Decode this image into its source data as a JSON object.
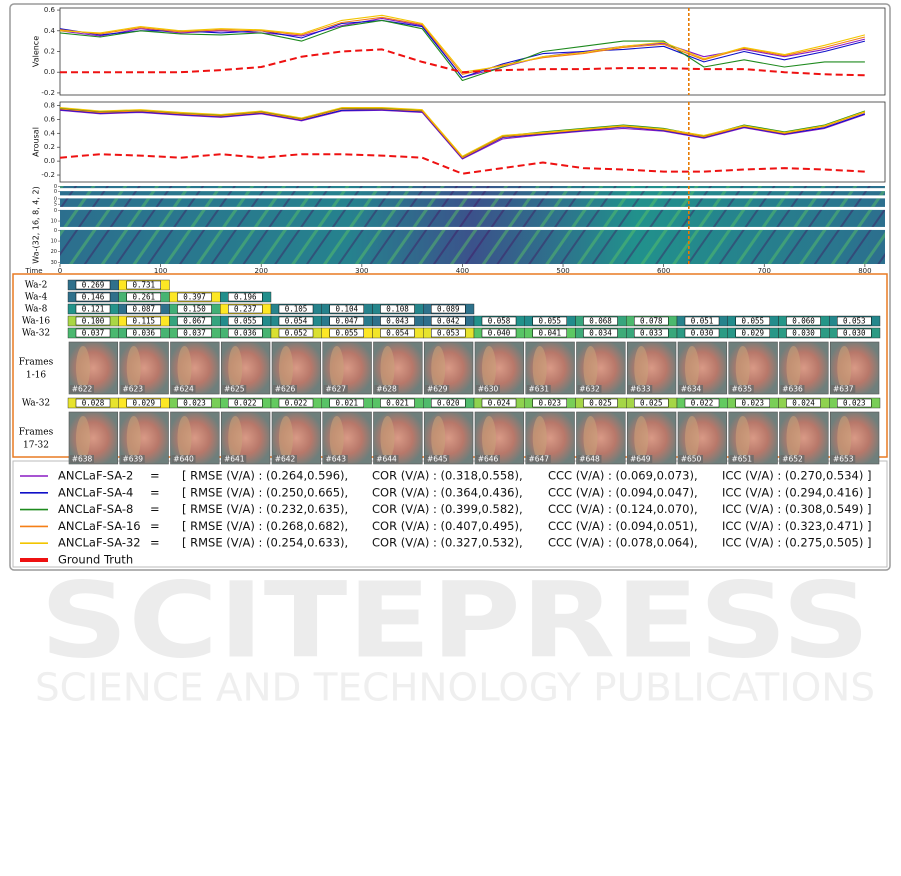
{
  "chart_data": [
    {
      "type": "line",
      "ylabel": "Valence",
      "x": [
        0,
        40,
        80,
        120,
        160,
        200,
        240,
        280,
        320,
        360,
        400,
        440,
        480,
        520,
        560,
        600,
        640,
        680,
        720,
        760,
        800
      ],
      "xlim": [
        0,
        820
      ],
      "ylim": [
        -0.22,
        0.62
      ],
      "yticks": [
        -0.2,
        {
          "value": 0,
          "label": "0.0"
        },
        0.2,
        0.4,
        0.6
      ],
      "highlight_x": 625,
      "highlight_color": "#e87a00",
      "series": [
        {
          "name": "ANCLaF-SA-2",
          "color": "#8a1cc4",
          "equals": "=",
          "metrics": [
            "[ RMSE (V/A) : (0.264,0.596),",
            "COR (V/A) : (0.318,0.558),",
            "CCC (V/A) : (0.069,0.073),",
            "ICC (V/A) : (0.270,0.534) ]"
          ],
          "values": [
            0.4,
            0.35,
            0.42,
            0.38,
            0.4,
            0.38,
            0.35,
            0.45,
            0.52,
            0.45,
            -0.05,
            0.05,
            0.15,
            0.2,
            0.25,
            0.28,
            0.15,
            0.22,
            0.15,
            0.22,
            0.32
          ]
        },
        {
          "name": "ANCLaF-SA-4",
          "color": "#1010c8",
          "equals": "=",
          "metrics": [
            "[ RMSE (V/A) : (0.250,0.665),",
            "COR (V/A) : (0.364,0.436),",
            "CCC (V/A) : (0.094,0.047),",
            "ICC (V/A) : (0.294,0.416) ]"
          ],
          "values": [
            0.42,
            0.36,
            0.4,
            0.4,
            0.38,
            0.4,
            0.33,
            0.47,
            0.5,
            0.44,
            -0.05,
            0.08,
            0.18,
            0.2,
            0.22,
            0.25,
            0.1,
            0.2,
            0.12,
            0.2,
            0.3
          ]
        },
        {
          "name": "ANCLaF-SA-8",
          "color": "#1e8a1e",
          "equals": "=",
          "metrics": [
            "[ RMSE (V/A) : (0.232,0.635),",
            "COR (V/A) : (0.399,0.582),",
            "CCC (V/A) : (0.124,0.070),",
            "ICC (V/A) : (0.308,0.549) ]"
          ],
          "values": [
            0.38,
            0.34,
            0.4,
            0.37,
            0.36,
            0.38,
            0.3,
            0.44,
            0.5,
            0.42,
            -0.08,
            0.05,
            0.2,
            0.25,
            0.3,
            0.3,
            0.05,
            0.12,
            0.05,
            0.1,
            0.1
          ]
        },
        {
          "name": "ANCLaF-SA-16",
          "color": "#f57f17",
          "equals": "=",
          "metrics": [
            "[ RMSE (V/A) : (0.268,0.682),",
            "COR (V/A) : (0.407,0.495),",
            "CCC (V/A) : (0.094,0.051),",
            "ICC (V/A) : (0.323,0.471) ]"
          ],
          "values": [
            0.41,
            0.37,
            0.43,
            0.39,
            0.41,
            0.4,
            0.36,
            0.48,
            0.53,
            0.46,
            -0.02,
            0.07,
            0.14,
            0.18,
            0.24,
            0.27,
            0.12,
            0.23,
            0.16,
            0.24,
            0.34
          ]
        },
        {
          "name": "ANCLaF-SA-32",
          "color": "#f2c500",
          "equals": "=",
          "metrics": [
            "[ RMSE (V/A) : (0.254,0.633),",
            "COR (V/A) : (0.327,0.532),",
            "CCC (V/A) : (0.078,0.064),",
            "ICC (V/A) : (0.275,0.505) ]"
          ],
          "values": [
            0.4,
            0.38,
            0.44,
            0.4,
            0.42,
            0.41,
            0.37,
            0.5,
            0.55,
            0.47,
            0.0,
            0.06,
            0.15,
            0.19,
            0.25,
            0.29,
            0.13,
            0.24,
            0.17,
            0.26,
            0.36
          ]
        },
        {
          "name": "Ground Truth",
          "color": "#ee1111",
          "dashed": true,
          "values": [
            0.0,
            0.0,
            0.0,
            0.0,
            0.02,
            0.05,
            0.15,
            0.2,
            0.22,
            0.1,
            0.0,
            0.02,
            0.03,
            0.03,
            0.04,
            0.04,
            0.03,
            0.03,
            0.0,
            -0.02,
            -0.03
          ]
        }
      ]
    },
    {
      "type": "line",
      "ylabel": "Arousal",
      "x": [
        0,
        40,
        80,
        120,
        160,
        200,
        240,
        280,
        320,
        360,
        400,
        440,
        480,
        520,
        560,
        600,
        640,
        680,
        720,
        760,
        800
      ],
      "xlim": [
        0,
        820
      ],
      "ylim": [
        -0.3,
        0.85
      ],
      "yticks": [
        -0.2,
        {
          "value": 0,
          "label": "0.0"
        },
        0.2,
        0.4,
        0.6,
        0.8
      ],
      "highlight_x": 625,
      "highlight_color": "#e87a00",
      "series": [
        {
          "color": "#8a1cc4",
          "values": [
            0.73,
            0.68,
            0.7,
            0.66,
            0.63,
            0.68,
            0.58,
            0.72,
            0.73,
            0.7,
            0.03,
            0.32,
            0.38,
            0.43,
            0.47,
            0.43,
            0.33,
            0.48,
            0.38,
            0.47,
            0.67
          ]
        },
        {
          "color": "#1010c8",
          "values": [
            0.74,
            0.69,
            0.71,
            0.67,
            0.64,
            0.69,
            0.59,
            0.73,
            0.74,
            0.71,
            0.04,
            0.34,
            0.39,
            0.44,
            0.49,
            0.44,
            0.34,
            0.49,
            0.39,
            0.48,
            0.68
          ]
        },
        {
          "color": "#1e8a1e",
          "values": [
            0.76,
            0.71,
            0.73,
            0.69,
            0.66,
            0.71,
            0.61,
            0.76,
            0.76,
            0.73,
            0.06,
            0.36,
            0.42,
            0.47,
            0.52,
            0.47,
            0.36,
            0.52,
            0.42,
            0.52,
            0.72
          ]
        },
        {
          "color": "#f57f17",
          "values": [
            0.75,
            0.7,
            0.72,
            0.68,
            0.65,
            0.7,
            0.6,
            0.75,
            0.75,
            0.72,
            0.05,
            0.35,
            0.4,
            0.45,
            0.5,
            0.45,
            0.35,
            0.5,
            0.4,
            0.5,
            0.7
          ]
        },
        {
          "color": "#f2c500",
          "values": [
            0.77,
            0.72,
            0.74,
            0.7,
            0.67,
            0.72,
            0.62,
            0.77,
            0.77,
            0.74,
            0.07,
            0.37,
            0.41,
            0.46,
            0.51,
            0.46,
            0.37,
            0.51,
            0.41,
            0.51,
            0.71
          ]
        },
        {
          "color": "#ee1111",
          "dashed": true,
          "values": [
            0.05,
            0.1,
            0.08,
            0.05,
            0.1,
            0.05,
            0.1,
            0.1,
            0.08,
            0.05,
            -0.18,
            -0.1,
            -0.02,
            -0.1,
            -0.12,
            -0.15,
            -0.15,
            -0.12,
            -0.1,
            -0.12,
            -0.15
          ]
        }
      ]
    },
    {
      "type": "heatmap",
      "ylabel": "Wa-(32, 16, 8, 4, 2)",
      "xlabel": "Time",
      "xlim": [
        0,
        820
      ],
      "xticks": [
        0,
        100,
        200,
        300,
        400,
        500,
        600,
        700,
        800
      ],
      "bands": [
        {
          "ylim": [
            0,
            2
          ],
          "yticks": [
            0
          ]
        },
        {
          "ylim": [
            0,
            4
          ],
          "yticks": [
            0
          ]
        },
        {
          "ylim": [
            0,
            8
          ],
          "yticks": [
            0,
            5
          ]
        },
        {
          "ylim": [
            0,
            16
          ],
          "yticks": [
            0,
            10
          ]
        },
        {
          "ylim": [
            0,
            32
          ],
          "yticks": [
            0,
            10,
            20,
            30
          ]
        }
      ]
    }
  ],
  "attention": [
    {
      "label": "Wa-2",
      "weights": [
        "0.269",
        "0.731"
      ]
    },
    {
      "label": "Wa-4",
      "weights": [
        "0.146",
        "0.261",
        "0.397",
        "0.196"
      ]
    },
    {
      "label": "Wa-8",
      "weights": [
        "0.121",
        "0.087",
        "0.150",
        "0.237",
        "0.105",
        "0.104",
        "0.108",
        "0.089"
      ]
    },
    {
      "label": "Wa-16",
      "weights": [
        "0.100",
        "0.115",
        "0.067",
        "0.055",
        "0.054",
        "0.047",
        "0.043",
        "0.042",
        "0.058",
        "0.055",
        "0.068",
        "0.078",
        "0.051",
        "0.055",
        "0.060",
        "0.053"
      ]
    },
    {
      "label": "Wa-32",
      "weights": [
        "0.037",
        "0.036",
        "0.037",
        "0.036",
        "0.052",
        "0.055",
        "0.054",
        "0.053",
        "0.040",
        "0.041",
        "0.034",
        "0.033",
        "0.030",
        "0.029",
        "0.030",
        "0.030"
      ]
    },
    {
      "label": [
        "Frames",
        "1-16"
      ],
      "frames": [
        "#622",
        "#623",
        "#624",
        "#625",
        "#626",
        "#627",
        "#628",
        "#629",
        "#630",
        "#631",
        "#632",
        "#633",
        "#634",
        "#635",
        "#636",
        "#637"
      ]
    },
    {
      "label": "Wa-32",
      "weights": [
        "0.028",
        "0.029",
        "0.023",
        "0.022",
        "0.022",
        "0.021",
        "0.021",
        "0.020",
        "0.024",
        "0.023",
        "0.025",
        "0.025",
        "0.022",
        "0.023",
        "0.024",
        "0.023"
      ]
    },
    {
      "label": [
        "Frames",
        "17-32"
      ],
      "frames": [
        "#638",
        "#639",
        "#640",
        "#641",
        "#642",
        "#643",
        "#644",
        "#645",
        "#646",
        "#647",
        "#648",
        "#649",
        "#650",
        "#651",
        "#652",
        "#653"
      ]
    }
  ],
  "watermark": {
    "title": "SCITEPRESS",
    "subtitle": "SCIENCE AND TECHNOLOGY PUBLICATIONS"
  }
}
